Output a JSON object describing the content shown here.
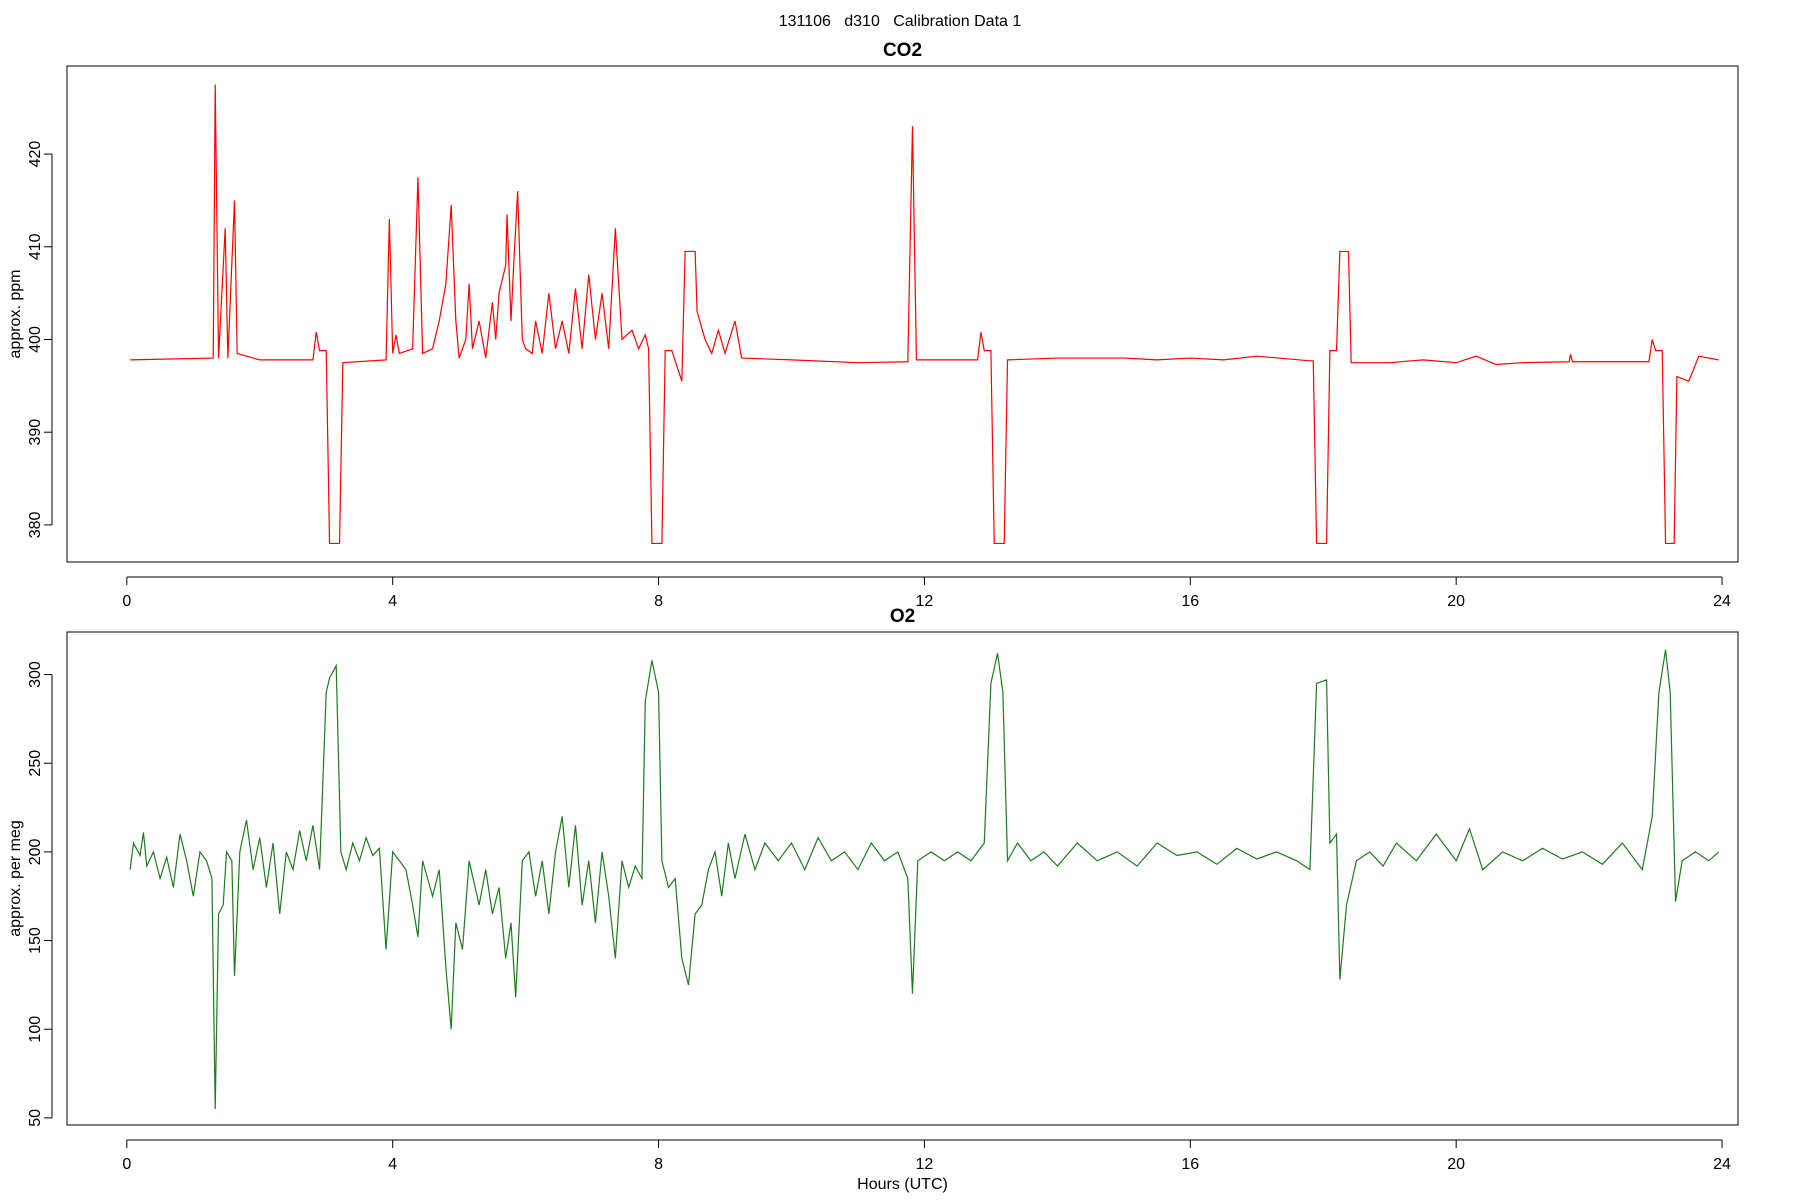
{
  "title": "131106   d310   Calibration Data 1",
  "chart_data": [
    {
      "type": "line",
      "title": "CO2",
      "ylabel": "approx. ppm",
      "color": "#ff0000",
      "xlim": [
        -0.9,
        24.24
      ],
      "xticks": [
        0,
        4,
        8,
        12,
        16,
        20,
        24
      ],
      "ylim": [
        376.0,
        429.5
      ],
      "yticks": [
        380,
        390,
        400,
        410,
        420
      ],
      "x": [
        0.05,
        1.3,
        1.33,
        1.38,
        1.48,
        1.52,
        1.62,
        1.66,
        2.0,
        2.8,
        2.85,
        2.9,
        3.0,
        3.05,
        3.2,
        3.25,
        3.9,
        3.95,
        4.0,
        4.05,
        4.1,
        4.3,
        4.38,
        4.45,
        4.6,
        4.7,
        4.8,
        4.88,
        4.95,
        5.0,
        5.1,
        5.15,
        5.2,
        5.3,
        5.4,
        5.5,
        5.55,
        5.6,
        5.7,
        5.72,
        5.78,
        5.82,
        5.88,
        5.95,
        6.0,
        6.1,
        6.15,
        6.25,
        6.35,
        6.45,
        6.55,
        6.65,
        6.75,
        6.85,
        6.95,
        7.05,
        7.15,
        7.25,
        7.35,
        7.45,
        7.6,
        7.7,
        7.8,
        7.85,
        7.9,
        8.05,
        8.1,
        8.2,
        8.35,
        8.4,
        8.55,
        8.58,
        8.7,
        8.8,
        8.9,
        9.0,
        9.15,
        9.25,
        10,
        11,
        11.75,
        11.82,
        11.88,
        12.8,
        12.85,
        12.9,
        13.0,
        13.05,
        13.2,
        13.25,
        14,
        15,
        15.5,
        16,
        16.5,
        17,
        17.8,
        17.85,
        17.9,
        18.05,
        18.1,
        18.2,
        18.25,
        18.38,
        18.42,
        19,
        19.5,
        20,
        20.3,
        20.6,
        21,
        21.7,
        21.72,
        21.75,
        22.9,
        22.95,
        23.0,
        23.1,
        23.15,
        23.28,
        23.32,
        23.5,
        23.65,
        23.95
      ],
      "values": [
        397.8,
        398,
        427.5,
        398,
        412,
        398,
        415,
        398.5,
        397.8,
        397.8,
        400.8,
        398.8,
        398.8,
        378,
        378,
        397.5,
        397.8,
        413,
        398.5,
        400.5,
        398.5,
        399,
        417.5,
        398.5,
        399,
        402,
        406,
        414.5,
        402,
        398,
        400,
        406,
        399,
        402,
        398,
        404,
        400,
        405,
        408,
        413.5,
        402,
        408,
        416,
        400,
        399,
        398.5,
        402,
        398.5,
        405,
        399,
        402,
        398.5,
        405.5,
        399,
        407,
        400,
        405,
        399,
        412,
        400,
        401,
        399,
        400.5,
        399,
        378,
        378,
        398.8,
        398.8,
        395.5,
        409.5,
        409.5,
        403,
        400,
        398.5,
        401,
        398.5,
        402,
        398,
        397.8,
        397.5,
        397.6,
        423,
        397.8,
        397.8,
        400.8,
        398.8,
        398.8,
        378,
        378,
        397.8,
        398,
        398,
        397.8,
        398,
        397.8,
        398.2,
        397.7,
        397.7,
        378,
        378,
        398.8,
        398.8,
        409.5,
        409.5,
        397.5,
        397.5,
        397.8,
        397.5,
        398.2,
        397.3,
        397.5,
        397.6,
        398.4,
        397.6,
        397.6,
        400,
        398.8,
        398.8,
        378,
        378,
        396,
        395.5,
        398.2,
        397.8
      ]
    },
    {
      "type": "line",
      "title": "O2",
      "ylabel": "approx. per meg",
      "xlabel": "Hours (UTC)",
      "color": "#1e7b1e",
      "xlim": [
        -0.9,
        24.24
      ],
      "xticks": [
        0,
        4,
        8,
        12,
        16,
        20,
        24
      ],
      "ylim": [
        46,
        324
      ],
      "yticks": [
        50,
        100,
        150,
        200,
        250,
        300
      ],
      "x": [
        0.05,
        0.1,
        0.2,
        0.25,
        0.3,
        0.4,
        0.5,
        0.6,
        0.7,
        0.8,
        0.9,
        1.0,
        1.1,
        1.2,
        1.28,
        1.33,
        1.38,
        1.45,
        1.5,
        1.58,
        1.62,
        1.7,
        1.8,
        1.9,
        2.0,
        2.1,
        2.2,
        2.3,
        2.4,
        2.5,
        2.6,
        2.7,
        2.8,
        2.9,
        3.0,
        3.05,
        3.15,
        3.22,
        3.3,
        3.4,
        3.5,
        3.6,
        3.7,
        3.8,
        3.9,
        4.0,
        4.1,
        4.2,
        4.3,
        4.38,
        4.45,
        4.6,
        4.7,
        4.8,
        4.88,
        4.95,
        5.05,
        5.15,
        5.3,
        5.4,
        5.5,
        5.6,
        5.7,
        5.78,
        5.85,
        5.95,
        6.05,
        6.15,
        6.25,
        6.35,
        6.45,
        6.55,
        6.65,
        6.75,
        6.85,
        6.95,
        7.05,
        7.15,
        7.25,
        7.35,
        7.45,
        7.55,
        7.65,
        7.75,
        7.8,
        7.9,
        8.0,
        8.05,
        8.15,
        8.25,
        8.35,
        8.45,
        8.55,
        8.65,
        8.75,
        8.85,
        8.95,
        9.05,
        9.15,
        9.3,
        9.45,
        9.6,
        9.8,
        10,
        10.2,
        10.4,
        10.6,
        10.8,
        11.0,
        11.2,
        11.4,
        11.6,
        11.75,
        11.82,
        11.9,
        12.1,
        12.3,
        12.5,
        12.7,
        12.9,
        13.0,
        13.1,
        13.18,
        13.25,
        13.4,
        13.6,
        13.8,
        14.0,
        14.3,
        14.6,
        14.9,
        15.2,
        15.5,
        15.8,
        16.1,
        16.4,
        16.7,
        17.0,
        17.3,
        17.6,
        17.8,
        17.9,
        18.05,
        18.1,
        18.2,
        18.25,
        18.35,
        18.5,
        18.7,
        18.9,
        19.1,
        19.4,
        19.7,
        20.0,
        20.2,
        20.4,
        20.7,
        21.0,
        21.3,
        21.6,
        21.9,
        22.2,
        22.5,
        22.8,
        22.95,
        23.05,
        23.15,
        23.22,
        23.3,
        23.4,
        23.6,
        23.8,
        23.95
      ],
      "values": [
        190,
        205,
        198,
        211,
        192,
        200,
        185,
        197,
        180,
        210,
        195,
        175,
        200,
        195,
        185,
        55,
        165,
        170,
        200,
        195,
        130,
        200,
        218,
        190,
        208,
        180,
        205,
        165,
        200,
        190,
        212,
        195,
        215,
        190,
        290,
        298,
        305,
        200,
        190,
        205,
        195,
        208,
        198,
        202,
        145,
        200,
        195,
        190,
        170,
        152,
        195,
        175,
        190,
        135,
        100,
        160,
        145,
        195,
        170,
        190,
        165,
        180,
        140,
        160,
        118,
        195,
        200,
        175,
        195,
        165,
        200,
        220,
        180,
        215,
        170,
        195,
        160,
        200,
        175,
        140,
        195,
        180,
        192,
        185,
        285,
        308,
        290,
        195,
        180,
        185,
        140,
        125,
        165,
        170,
        190,
        200,
        175,
        205,
        185,
        210,
        190,
        205,
        195,
        205,
        190,
        208,
        195,
        200,
        190,
        205,
        195,
        200,
        185,
        120,
        195,
        200,
        195,
        200,
        195,
        205,
        295,
        312,
        290,
        195,
        205,
        195,
        200,
        192,
        205,
        195,
        200,
        192,
        205,
        198,
        200,
        193,
        202,
        196,
        200,
        195,
        190,
        295,
        297,
        205,
        210,
        128,
        170,
        195,
        200,
        192,
        205,
        195,
        210,
        195,
        213,
        190,
        200,
        195,
        202,
        196,
        200,
        193,
        205,
        190,
        220,
        290,
        314,
        290,
        172,
        195,
        200,
        195,
        200
      ]
    }
  ]
}
